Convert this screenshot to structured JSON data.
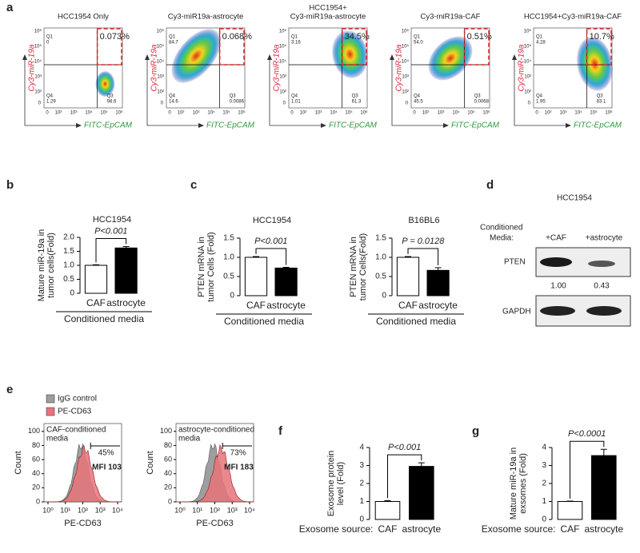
{
  "panel_labels": [
    "a",
    "b",
    "c",
    "d",
    "e",
    "f",
    "g"
  ],
  "flow_axis": {
    "y_label": "Cy3-miR-19a",
    "x_label": "FITC-EpCAM",
    "zero": "0",
    "ticks": [
      "10²",
      "10³",
      "10⁴",
      "10⁵",
      "10⁶"
    ],
    "quadrants": [
      "Q1",
      "Q4",
      "Q3"
    ]
  },
  "flow_plots": [
    {
      "title": [
        "HCC1954 Only"
      ],
      "q1": "0",
      "q4": "1.29",
      "q3": "98.6",
      "gate": "0.073%"
    },
    {
      "title": [
        "Cy3-miR19a-astrocyte"
      ],
      "q1": "84.7",
      "q4": "14.6",
      "q3": "0.0086",
      "gate": "0.068%"
    },
    {
      "title": [
        "HCC1954+",
        "Cy3-miR19a-astrocyte"
      ],
      "q1": "3.16",
      "q4": "1.01",
      "q3": "61.3",
      "gate": "34.5%"
    },
    {
      "title": [
        "Cy3-miR19a-CAF"
      ],
      "q1": "54.0",
      "q4": "45.5",
      "q3": "0.0068",
      "gate": "0.51%"
    },
    {
      "title": [
        "HCC1954+Cy3-miR19a-CAF"
      ],
      "q1": "4.28",
      "q4": "1.95",
      "q3": "83.1",
      "gate": "10.7%"
    }
  ],
  "chart_data": [
    {
      "type": "bar",
      "title": "HCC1954",
      "y_label": [
        "Mature miR-19a in",
        "tumor cells(Fold)"
      ],
      "categories": [
        "CAF",
        "astrocyte"
      ],
      "values": [
        1.0,
        1.62
      ],
      "errors": [
        0.02,
        0.05
      ],
      "colors": [
        "#ffffff",
        "#000000"
      ],
      "ylim": [
        0,
        2
      ],
      "yticks": [
        0,
        0.5,
        {
          "value": 1,
          "label": "1.0"
        },
        1.5,
        {
          "value": 2,
          "label": "2.0"
        }
      ],
      "annotation": "P<0.001",
      "group_label": "Conditioned media"
    },
    {
      "type": "bar",
      "title": "HCC1954",
      "y_label": [
        "PTEN mRNA in",
        "tumor Cells (Fold)"
      ],
      "categories": [
        "CAF",
        "astrocyte"
      ],
      "values": [
        1.0,
        0.72
      ],
      "errors": [
        0.02,
        0.02
      ],
      "colors": [
        "#ffffff",
        "#000000"
      ],
      "ylim": [
        0,
        1.5
      ],
      "yticks": [
        0,
        0.5,
        {
          "value": 1,
          "label": "1.0"
        },
        1.5
      ],
      "annotation": "P<0.001",
      "group_label": "Conditioned media"
    },
    {
      "type": "bar",
      "title": "B16BL6",
      "y_label": [
        "PTEN mRNA in",
        "tumor Cells(Fold)"
      ],
      "categories": [
        "CAF",
        "astrocyte"
      ],
      "values": [
        1.0,
        0.66
      ],
      "errors": [
        0.02,
        0.07
      ],
      "colors": [
        "#ffffff",
        "#000000"
      ],
      "ylim": [
        0,
        1.5
      ],
      "yticks": [
        0,
        0.5,
        {
          "value": 1,
          "label": "1.0"
        },
        1.5
      ],
      "annotation": "P = 0.0128",
      "group_label": "Conditioned media"
    },
    {
      "type": "bar",
      "y_label": [
        "Exosome protein",
        "level (Fold)"
      ],
      "x_prefix": "Exosome source:",
      "categories": [
        "CAF",
        "astrocyte"
      ],
      "values": [
        1.0,
        2.95
      ],
      "errors": [
        0.05,
        0.2
      ],
      "colors": [
        "#ffffff",
        "#000000"
      ],
      "ylim": [
        0,
        4
      ],
      "yticks": [
        0,
        1,
        2,
        3,
        4
      ],
      "annotation": "P<0.001"
    },
    {
      "type": "bar",
      "y_label": [
        "Mature miR-19a in",
        "exsomes (Fold)"
      ],
      "x_prefix": "Exosome source:",
      "categories": [
        "CAF",
        "astrocyte"
      ],
      "values": [
        1.0,
        3.55
      ],
      "errors": [
        0.02,
        0.35
      ],
      "colors": [
        "#ffffff",
        "#000000"
      ],
      "ylim": [
        0,
        4
      ],
      "yticks": [
        0,
        1,
        2,
        3,
        4
      ],
      "annotation": "P<0.0001"
    }
  ],
  "western_blot": {
    "title": "HCC1954",
    "media_label": [
      "Conditioned",
      "Media:"
    ],
    "lanes": [
      "+CAF",
      "+astrocyte"
    ],
    "rows": [
      "PTEN",
      "GAPDH"
    ],
    "ratios": [
      "1.00",
      "0.43"
    ]
  },
  "histograms": {
    "legend": [
      "IgG control",
      "PE-CD63"
    ],
    "legend_colors": [
      "#9e9e9e",
      "#e8737a"
    ],
    "y_label": "Count",
    "x_label": "PE-CD63",
    "yticks": [
      "0",
      "20",
      "40",
      "60",
      "80",
      "100"
    ],
    "xticks": [
      "10⁰",
      "10¹",
      "10²",
      "10³",
      "10⁴"
    ],
    "plots": [
      {
        "label": [
          "CAF-conditioned",
          "media"
        ],
        "gate": "45%",
        "mfi": "MFI 103"
      },
      {
        "label": [
          "astrocyte-conditioned",
          "media"
        ],
        "gate": "73%",
        "mfi": "MFI 183"
      }
    ]
  }
}
